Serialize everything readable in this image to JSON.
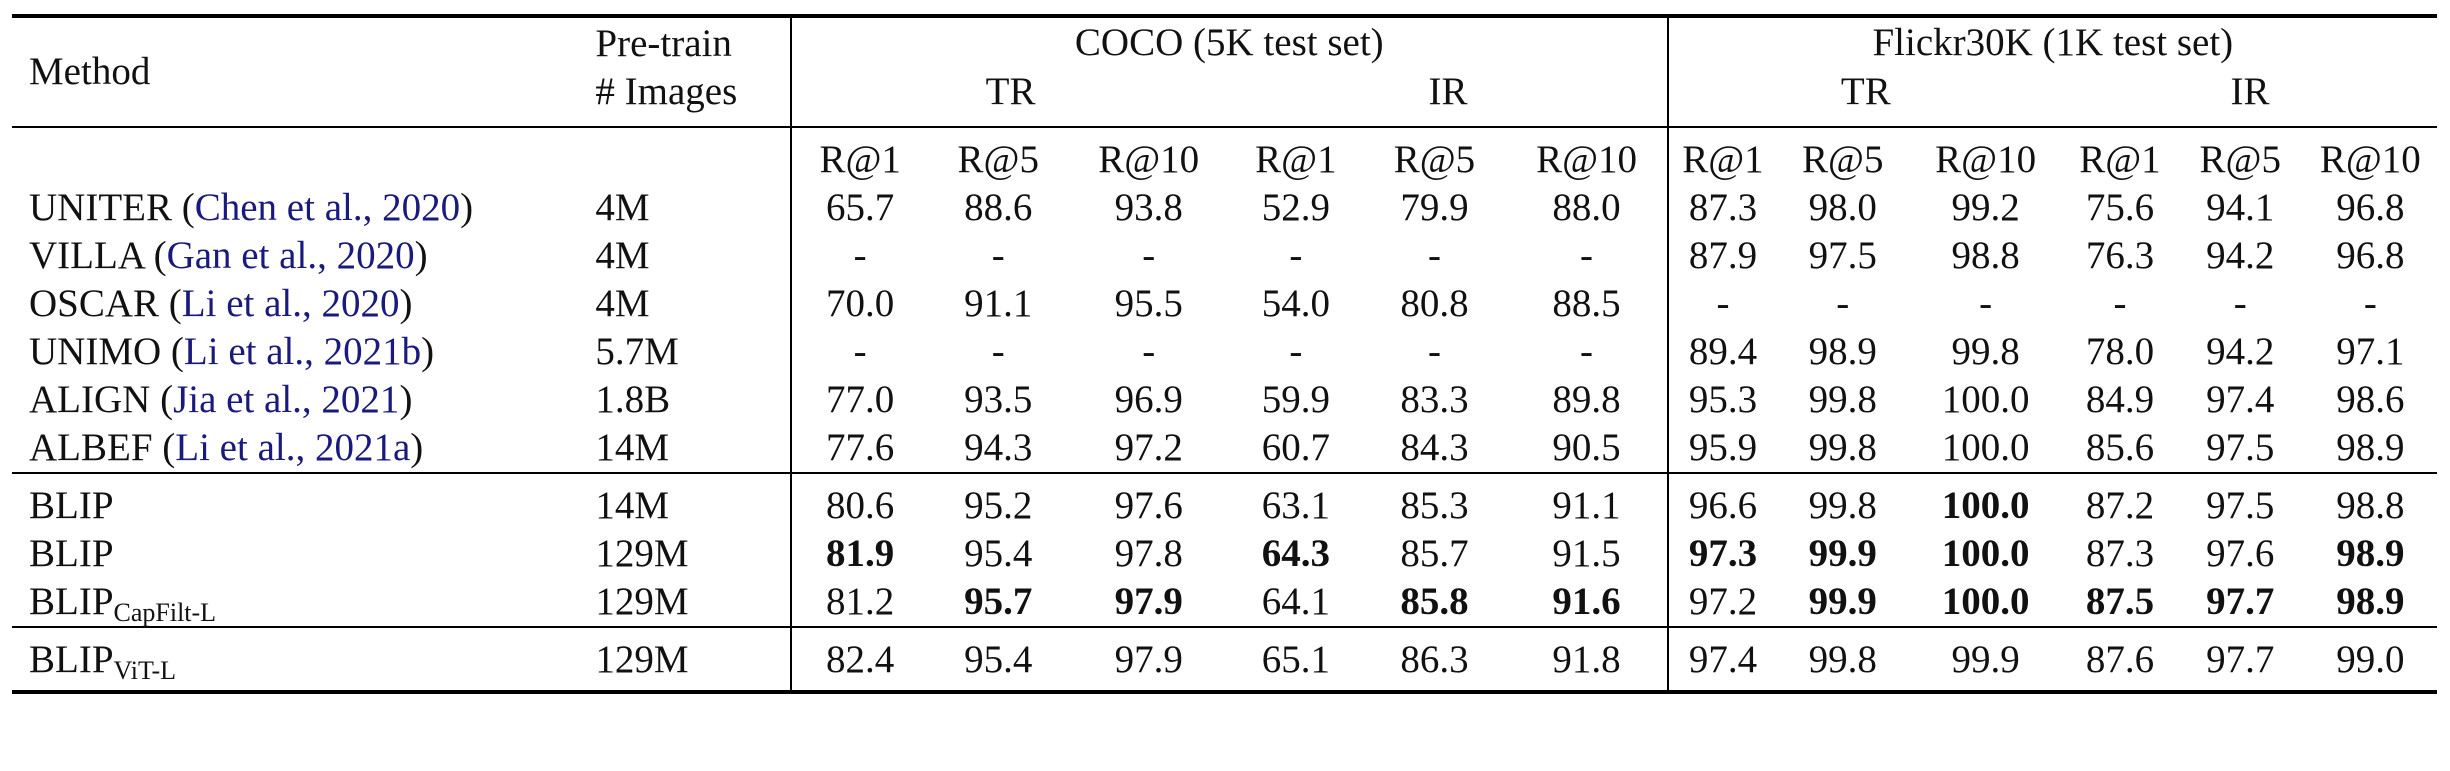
{
  "header": {
    "method": "Method",
    "pretrain_line1": "Pre-train",
    "pretrain_line2": "# Images",
    "coco": "COCO (5K test set)",
    "flickr": "Flickr30K (1K test set)",
    "tr": "TR",
    "ir": "IR",
    "metrics": [
      "R@1",
      "R@5",
      "R@10",
      "R@1",
      "R@5",
      "R@10",
      "R@1",
      "R@5",
      "R@10",
      "R@1",
      "R@5",
      "R@10"
    ]
  },
  "groups": [
    [
      {
        "name": "UNITER",
        "cite_open": " (",
        "cite": "Chen et al., 2020",
        "cite_close": ")",
        "images": "4M",
        "values": [
          "65.7",
          "88.6",
          "93.8",
          "52.9",
          "79.9",
          "88.0",
          "87.3",
          "98.0",
          "99.2",
          "75.6",
          "94.1",
          "96.8"
        ],
        "bold": []
      },
      {
        "name": "VILLA",
        "cite_open": " (",
        "cite": "Gan et al., 2020",
        "cite_close": ")",
        "images": "4M",
        "values": [
          "-",
          "-",
          "-",
          "-",
          "-",
          "-",
          "87.9",
          "97.5",
          "98.8",
          "76.3",
          "94.2",
          "96.8"
        ],
        "bold": []
      },
      {
        "name": "OSCAR",
        "cite_open": " (",
        "cite": "Li et al., 2020",
        "cite_close": ")",
        "images": "4M",
        "values": [
          "70.0",
          "91.1",
          "95.5",
          "54.0",
          "80.8",
          "88.5",
          "-",
          "-",
          "-",
          "-",
          "-",
          "-"
        ],
        "bold": []
      },
      {
        "name": "UNIMO",
        "cite_open": " (",
        "cite": "Li et al., 2021b",
        "cite_close": ")",
        "images": "5.7M",
        "values": [
          "-",
          "-",
          "-",
          "-",
          "-",
          "-",
          "89.4",
          "98.9",
          "99.8",
          "78.0",
          "94.2",
          "97.1"
        ],
        "bold": []
      },
      {
        "name": "ALIGN",
        "cite_open": " (",
        "cite": "Jia et al., 2021",
        "cite_close": ")",
        "images": "1.8B",
        "values": [
          "77.0",
          "93.5",
          "96.9",
          "59.9",
          "83.3",
          "89.8",
          "95.3",
          "99.8",
          "100.0",
          "84.9",
          "97.4",
          "98.6"
        ],
        "bold": []
      },
      {
        "name": "ALBEF",
        "cite_open": " (",
        "cite": "Li et al., 2021a",
        "cite_close": ")",
        "images": "14M",
        "values": [
          "77.6",
          "94.3",
          "97.2",
          "60.7",
          "84.3",
          "90.5",
          "95.9",
          "99.8",
          "100.0",
          "85.6",
          "97.5",
          "98.9"
        ],
        "bold": []
      }
    ],
    [
      {
        "name": "BLIP",
        "images": "14M",
        "values": [
          "80.6",
          "95.2",
          "97.6",
          "63.1",
          "85.3",
          "91.1",
          "96.6",
          "99.8",
          "100.0",
          "87.2",
          "97.5",
          "98.8"
        ],
        "bold": [
          8
        ]
      },
      {
        "name": "BLIP",
        "images": "129M",
        "values": [
          "81.9",
          "95.4",
          "97.8",
          "64.3",
          "85.7",
          "91.5",
          "97.3",
          "99.9",
          "100.0",
          "87.3",
          "97.6",
          "98.9"
        ],
        "bold": [
          0,
          3,
          6,
          7,
          8,
          11
        ]
      },
      {
        "name": "BLIP",
        "sub": "CapFilt-L",
        "images": "129M",
        "values": [
          "81.2",
          "95.7",
          "97.9",
          "64.1",
          "85.8",
          "91.6",
          "97.2",
          "99.9",
          "100.0",
          "87.5",
          "97.7",
          "98.9"
        ],
        "bold": [
          1,
          2,
          4,
          5,
          7,
          8,
          9,
          10,
          11
        ]
      }
    ],
    [
      {
        "name": "BLIP",
        "sub": "ViT-L",
        "images": "129M",
        "values": [
          "82.4",
          "95.4",
          "97.9",
          "65.1",
          "86.3",
          "91.8",
          "97.4",
          "99.8",
          "99.9",
          "87.6",
          "97.7",
          "99.0"
        ],
        "bold": []
      }
    ]
  ]
}
